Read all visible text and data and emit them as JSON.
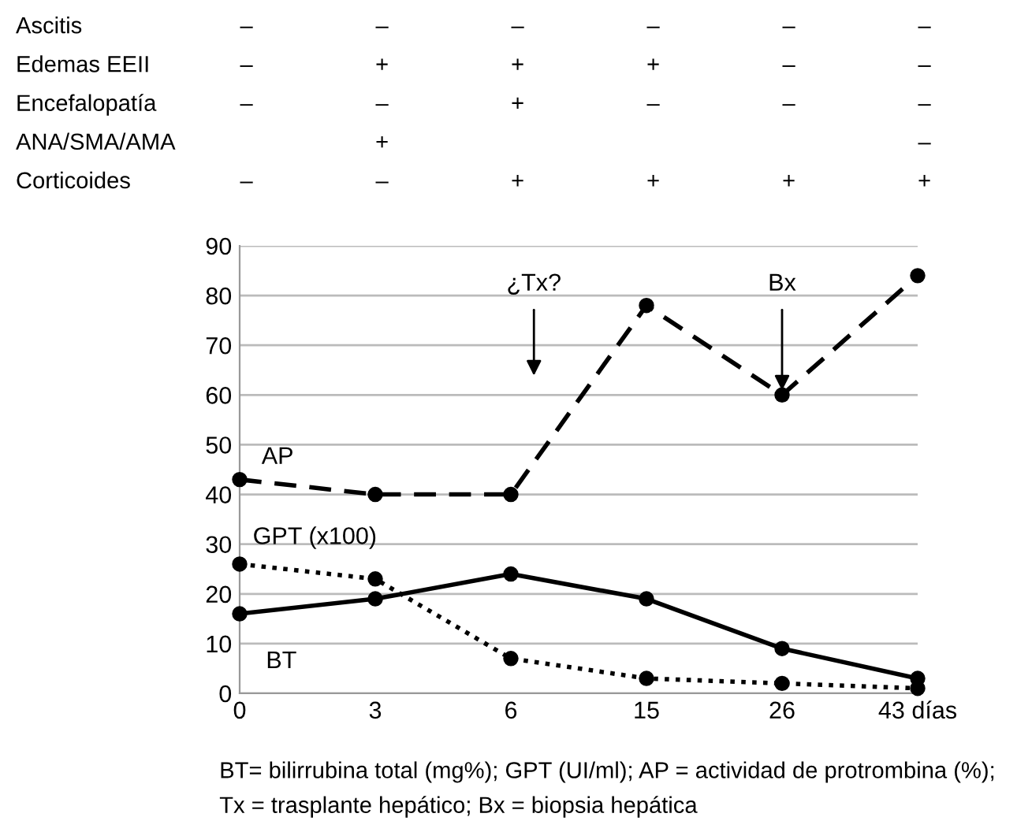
{
  "chart_data": [
    {
      "type": "other",
      "categories": [
        null,
        null,
        null,
        null,
        null,
        null
      ],
      "y_categories": [
        "Ascitis",
        "Edemas EEII",
        "Encefalopatía",
        "ANA/SMA/AMA",
        "Corticoides"
      ],
      "cell_labels": [
        [
          "–",
          "–",
          "–",
          "–",
          "–",
          "–"
        ],
        [
          "–",
          "+",
          "+",
          "+",
          "–",
          "–"
        ],
        [
          "–",
          "–",
          "+",
          "–",
          "–",
          "–"
        ],
        [
          null,
          "+",
          null,
          null,
          null,
          "–"
        ],
        [
          "–",
          "–",
          "+",
          "+",
          "+",
          "+"
        ]
      ]
    },
    {
      "type": "line",
      "categories": [
        "0",
        "3",
        "6",
        "15",
        "26",
        "43 días"
      ],
      "series": [
        {
          "name": "AP",
          "color": "#000000",
          "line_style": "dashed",
          "values": [
            43,
            40,
            40,
            78,
            60,
            84
          ]
        },
        {
          "name": "GPT (x100)",
          "color": "#000000",
          "line_style": "dotted",
          "values": [
            26,
            23,
            7,
            3,
            2,
            1
          ]
        },
        {
          "name": "BT",
          "color": "#000000",
          "line_style": "solid",
          "values": [
            16,
            19,
            24,
            19,
            9,
            3
          ]
        }
      ],
      "ylim": [
        0,
        90
      ],
      "yticks": [
        0,
        10,
        20,
        30,
        40,
        50,
        60,
        70,
        80,
        90
      ],
      "grid": "y",
      "legend": false,
      "marker": "circle",
      "annotations": [
        "¿Tx?",
        {
          "text": "Bx",
          "x": "26",
          "y": 60
        },
        "BT= bilirrubina total (mg%); GPT (UI/ml); AP = actividad de protrombina (%);",
        "Tx = trasplante hepático; Bx = biopsia hepática"
      ]
    }
  ]
}
